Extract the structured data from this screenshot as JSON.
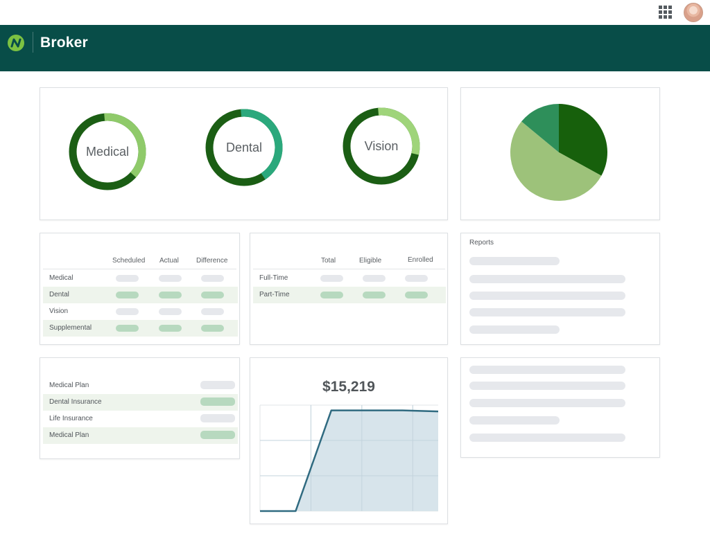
{
  "app": {
    "title": "Broker"
  },
  "donuts": [
    {
      "label": "Medical",
      "fraction": 0.38,
      "colors": [
        "#8fca6a",
        "#1b5e14"
      ]
    },
    {
      "label": "Dental",
      "fraction": 0.42,
      "colors": [
        "#2ba87c",
        "#1b5e14"
      ]
    },
    {
      "label": "Vision",
      "fraction": 0.3,
      "colors": [
        "#9fd47a",
        "#1b5e14"
      ]
    }
  ],
  "pie": {
    "slices": [
      {
        "value": 0.33,
        "color": "#17600c"
      },
      {
        "value": 0.53,
        "color": "#9dc27a"
      },
      {
        "value": 0.14,
        "color": "#2e8f5a"
      }
    ]
  },
  "coverage_table": {
    "columns": [
      "Scheduled",
      "Actual",
      "Difference"
    ],
    "rows": [
      "Medical",
      "Dental",
      "Vision",
      "Supplemental"
    ]
  },
  "employee_table": {
    "columns": [
      "Total",
      "Eligible",
      "Enrolled"
    ],
    "rows": [
      "Full-Time",
      "Part-Time"
    ]
  },
  "reports": {
    "title": "Reports"
  },
  "plans": {
    "rows": [
      "Medical Plan",
      "Dental Insurance",
      "Life Insurance",
      "Medical Plan"
    ]
  },
  "chart_data": {
    "type": "area",
    "title": "$15,219",
    "x": [
      0,
      1,
      2,
      3,
      4,
      5
    ],
    "values": [
      0,
      0,
      95,
      95,
      95,
      94
    ],
    "ylim": [
      0,
      100
    ],
    "grid": true,
    "colors": {
      "line": "#2f6a80",
      "fill": "#d5e3ea"
    }
  }
}
